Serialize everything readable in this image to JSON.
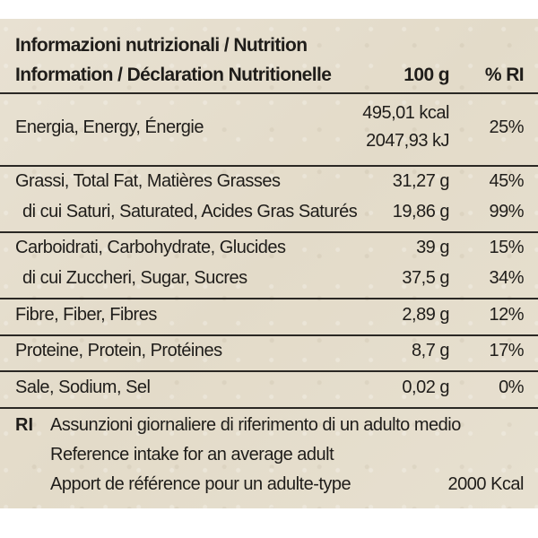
{
  "header": {
    "title_line1": "Informazioni nutrizionali / Nutrition",
    "title_line2": "Information / Déclaration Nutritionelle",
    "col_100g": "100 g",
    "col_ri": "% RI"
  },
  "rows": {
    "energy": {
      "name": "Energia, Energy, Énergie",
      "kcal": "495,01 kcal",
      "kj": "2047,93 kJ",
      "ri": "25%"
    },
    "fat": {
      "name": "Grassi, Total Fat, Matières Grasses",
      "value": "31,27 g",
      "ri": "45%"
    },
    "saturated": {
      "name": "di cui Saturi, Saturated, Acides Gras Saturés",
      "value": "19,86 g",
      "ri": "99%"
    },
    "carbs": {
      "name": "Carboidrati, Carbohydrate, Glucides",
      "value": "39 g",
      "ri": "15%"
    },
    "sugars": {
      "name": "di cui Zuccheri, Sugar, Sucres",
      "value": "37,5 g",
      "ri": "34%"
    },
    "fibre": {
      "name": "Fibre, Fiber, Fibres",
      "value": "2,89 g",
      "ri": "12%"
    },
    "protein": {
      "name": "Proteine, Protein, Protéines",
      "value": "8,7 g",
      "ri": "17%"
    },
    "salt": {
      "name": "Sale, Sodium, Sel",
      "value": "0,02 g",
      "ri": "0%"
    }
  },
  "footer": {
    "key": "RI",
    "line1": "Assunzioni giornaliere di riferimento di un adulto medio",
    "line2": "Reference intake for an average adult",
    "line3": "Apport de référence pour un adulte-type",
    "kcal": "2000 Kcal"
  },
  "colors": {
    "background": "#e6dfcf",
    "text": "#1f1d1a",
    "rule": "#2a2824"
  }
}
